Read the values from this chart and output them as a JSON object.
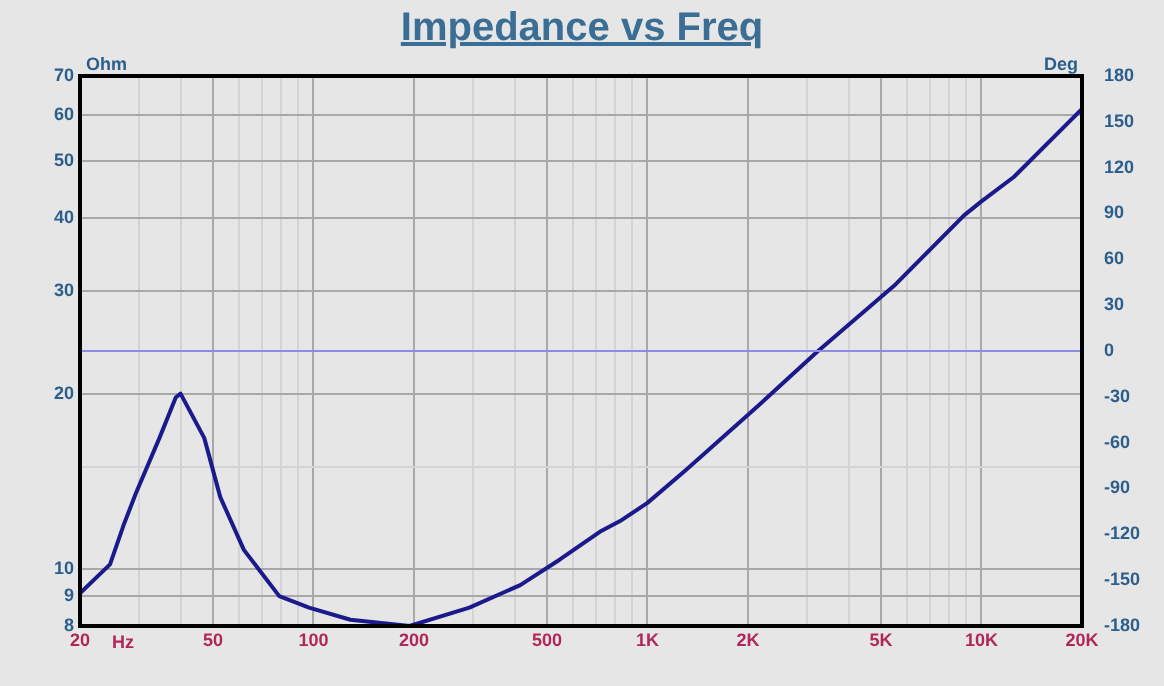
{
  "chart_data": {
    "type": "line",
    "title": "Impedance vs Freq",
    "xlabel": "Hz",
    "ylabel": "Ohm",
    "y2label": "Deg",
    "x": [
      20,
      24.6,
      27,
      29.4,
      34.6,
      38.7,
      40,
      47.1,
      52.6,
      61.9,
      79,
      97,
      129,
      194,
      293,
      416,
      547,
      720,
      828,
      1000,
      1304,
      2175,
      3198,
      5474,
      8870,
      10000,
      12500,
      20000
    ],
    "series": [
      {
        "color": "#1a1a8c",
        "values": [
          9.1,
          10.2,
          11.9,
          13.5,
          16.8,
          19.7,
          20,
          16.8,
          13.3,
          10.8,
          9.0,
          8.6,
          8.2,
          8.0,
          8.6,
          9.4,
          10.4,
          11.6,
          12.1,
          13.0,
          14.8,
          19.2,
          23.5,
          30.6,
          40.4,
          42.7,
          47,
          61.5
        ]
      }
    ],
    "log": "xy",
    "xlim": [
      20,
      20000
    ],
    "xticks": [
      {
        "value": 20,
        "label": "20"
      },
      {
        "value": 30,
        "label": null
      },
      {
        "value": 40,
        "label": null
      },
      50,
      {
        "value": 60,
        "label": null
      },
      {
        "value": 70,
        "label": null
      },
      {
        "value": 80,
        "label": null
      },
      {
        "value": 90,
        "label": null
      },
      100,
      200,
      {
        "value": 300,
        "label": null
      },
      {
        "value": 400,
        "label": null
      },
      500,
      {
        "value": 600,
        "label": null
      },
      {
        "value": 700,
        "label": null
      },
      {
        "value": 800,
        "label": null
      },
      {
        "value": 900,
        "label": null
      },
      {
        "value": 1000,
        "label": "1K"
      },
      {
        "value": 2000,
        "label": "2K"
      },
      {
        "value": 3000,
        "label": null
      },
      {
        "value": 4000,
        "label": null
      },
      {
        "value": 5000,
        "label": "5K"
      },
      {
        "value": 6000,
        "label": null
      },
      {
        "value": 7000,
        "label": null
      },
      {
        "value": 8000,
        "label": null
      },
      {
        "value": 9000,
        "label": null
      },
      {
        "value": 10000,
        "label": "10K"
      },
      {
        "value": 20000,
        "label": "20K"
      }
    ],
    "ylim": [
      8,
      70
    ],
    "yticks": [
      8,
      9,
      10,
      {
        "value": 15,
        "label": null
      },
      20,
      30,
      40,
      50,
      60,
      70
    ],
    "y2lim": [
      -180,
      180
    ],
    "y2ticks": [
      -180,
      -150,
      -120,
      -90,
      -60,
      -30,
      0,
      30,
      60,
      90,
      120,
      150,
      180
    ],
    "ref_lines": [
      {
        "axis": "y2",
        "value": 0,
        "color": "#8c8ce6"
      }
    ],
    "grid": true,
    "legend": false,
    "marker": "none",
    "line_style": "solid"
  }
}
